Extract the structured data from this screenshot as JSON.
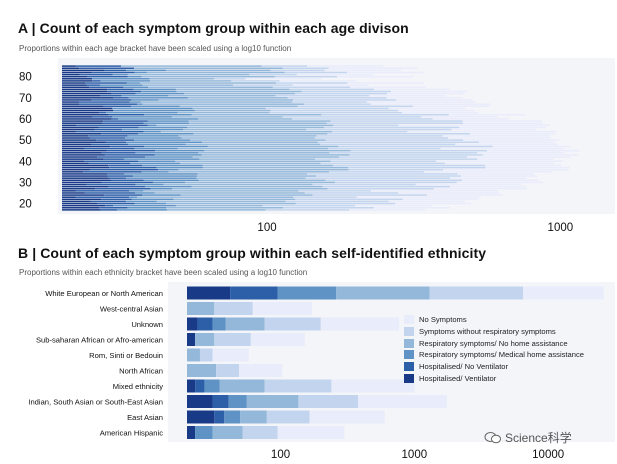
{
  "panel_a": {
    "title": "A | Count of each symptom group within each age divison",
    "subtitle": "Proportions within each age bracket have been scaled using a log10 function"
  },
  "panel_b": {
    "title": "B | Count of each symptom group within each self-identified ethnicity",
    "subtitle": "Proportions within each ethnicity bracket have been scaled using a log10 function"
  },
  "legend": [
    {
      "label": "No Symptoms",
      "color": "#e9ecfa"
    },
    {
      "label": "Symptoms without respiratory symptoms",
      "color": "#c3d5ee"
    },
    {
      "label": "Respiratory symptoms/ No home assistance",
      "color": "#94b8da"
    },
    {
      "label": "Respiratory symptoms/ Medical home assistance",
      "color": "#5f93c5"
    },
    {
      "label": "Hospitalised/ No Ventilator",
      "color": "#2d5ea8"
    },
    {
      "label": "Hospitalised/ Ventilator",
      "color": "#183a87"
    }
  ],
  "watermark": "Science科学",
  "chart_data": [
    {
      "type": "bar",
      "orientation": "horizontal",
      "stacked": true,
      "title": "A | Count of each symptom group within each age divison",
      "subtitle": "Proportions within each age bracket have been scaled using a log10 function",
      "x_scale": "log10",
      "x_ticks": [
        "100",
        "1000"
      ],
      "y_ticks": [
        "80",
        "70",
        "60",
        "50",
        "40",
        "30",
        "20"
      ],
      "y_range": [
        16,
        86
      ],
      "x_range": [
        20,
        1500
      ],
      "series_names": [
        "No Symptoms",
        "Symptoms without respiratory symptoms",
        "Respiratory symptoms/ No home assistance",
        "Respiratory symptoms/ Medical home assistance",
        "Hospitalised/ No Ventilator",
        "Hospitalised/ Ventilator"
      ]
    },
    {
      "type": "bar",
      "orientation": "horizontal",
      "stacked": true,
      "title": "B | Count of each symptom group within each self-identified ethnicity",
      "subtitle": "Proportions within each ethnicity bracket have been scaled using a log10 function",
      "x_scale": "log10",
      "x_ticks": [
        "100",
        "1000",
        "10000"
      ],
      "x_range": [
        20,
        30000
      ],
      "categories": [
        "White European or North American",
        "West-central Asian",
        "Unknown",
        "Sub-saharan African or Afro-american",
        "Rom, Sinti or Bedouin",
        "North African",
        "Mixed ethnicity",
        "Indian, South Asian or South-East Asian",
        "East Asian",
        "American Hispanic"
      ],
      "series": [
        {
          "name": "Hospitalised/ Ventilator",
          "values": [
            42,
            0,
            24,
            23,
            0,
            0,
            23,
            31,
            32,
            23
          ]
        },
        {
          "name": "Hospitalised/ No Ventilator",
          "values": [
            95,
            0,
            31,
            0,
            0,
            0,
            27,
            41,
            38,
            0
          ]
        },
        {
          "name": "Respiratory symptoms/ Medical home assistance",
          "values": [
            260,
            0,
            39,
            0,
            0,
            0,
            35,
            56,
            50,
            31
          ]
        },
        {
          "name": "Respiratory symptoms/ No home assistance",
          "values": [
            1300,
            32,
            76,
            32,
            25,
            33,
            76,
            136,
            79,
            52
          ]
        },
        {
          "name": "Symptoms without respiratory symptoms",
          "values": [
            6500,
            62,
            200,
            60,
            31,
            49,
            240,
            380,
            165,
            95
          ]
        },
        {
          "name": "No Symptoms",
          "values": [
            26000,
            172,
            770,
            152,
            58,
            103,
            1000,
            1750,
            600,
            300
          ]
        }
      ]
    }
  ]
}
